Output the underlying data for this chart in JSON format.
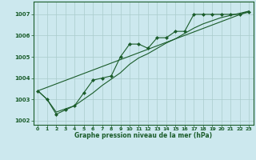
{
  "title": "Graphe pression niveau de la mer (hPa)",
  "background_color": "#cce8ee",
  "grid_color": "#aacccc",
  "line_color": "#1a5c2a",
  "xlim": [
    -0.5,
    23.5
  ],
  "ylim": [
    1001.8,
    1007.6
  ],
  "xticks": [
    0,
    1,
    2,
    3,
    4,
    5,
    6,
    7,
    8,
    9,
    10,
    11,
    12,
    13,
    14,
    15,
    16,
    17,
    18,
    19,
    20,
    21,
    22,
    23
  ],
  "yticks": [
    1002,
    1003,
    1004,
    1005,
    1006,
    1007
  ],
  "series": [
    {
      "x": [
        0,
        1,
        2,
        3,
        4,
        5,
        6,
        7,
        8,
        9,
        10,
        11,
        12,
        13,
        14,
        15,
        16,
        17,
        18,
        19,
        20,
        21,
        22,
        23
      ],
      "y": [
        1003.4,
        1003.0,
        1002.3,
        1002.5,
        1002.7,
        1003.3,
        1003.9,
        1004.0,
        1004.1,
        1005.0,
        1005.6,
        1005.6,
        1005.4,
        1005.9,
        1005.9,
        1006.2,
        1006.2,
        1007.0,
        1007.0,
        1007.0,
        1007.0,
        1007.0,
        1007.0,
        1007.1
      ],
      "marker": "D",
      "markersize": 2.0,
      "linewidth": 0.8
    },
    {
      "x": [
        0,
        1,
        2,
        3,
        4,
        5,
        6,
        7,
        8,
        9,
        10,
        11,
        12,
        13,
        14,
        15,
        16,
        17,
        18,
        19,
        20,
        21,
        22,
        23
      ],
      "y": [
        1003.4,
        1003.0,
        1002.4,
        1002.55,
        1002.7,
        1003.0,
        1003.3,
        1003.65,
        1003.95,
        1004.25,
        1004.65,
        1004.95,
        1005.15,
        1005.4,
        1005.65,
        1005.85,
        1006.1,
        1006.35,
        1006.55,
        1006.7,
        1006.85,
        1006.95,
        1007.05,
        1007.15
      ],
      "marker": null,
      "markersize": 0,
      "linewidth": 0.8
    },
    {
      "x": [
        0,
        23
      ],
      "y": [
        1003.4,
        1007.15
      ],
      "marker": null,
      "markersize": 0,
      "linewidth": 0.8
    }
  ]
}
